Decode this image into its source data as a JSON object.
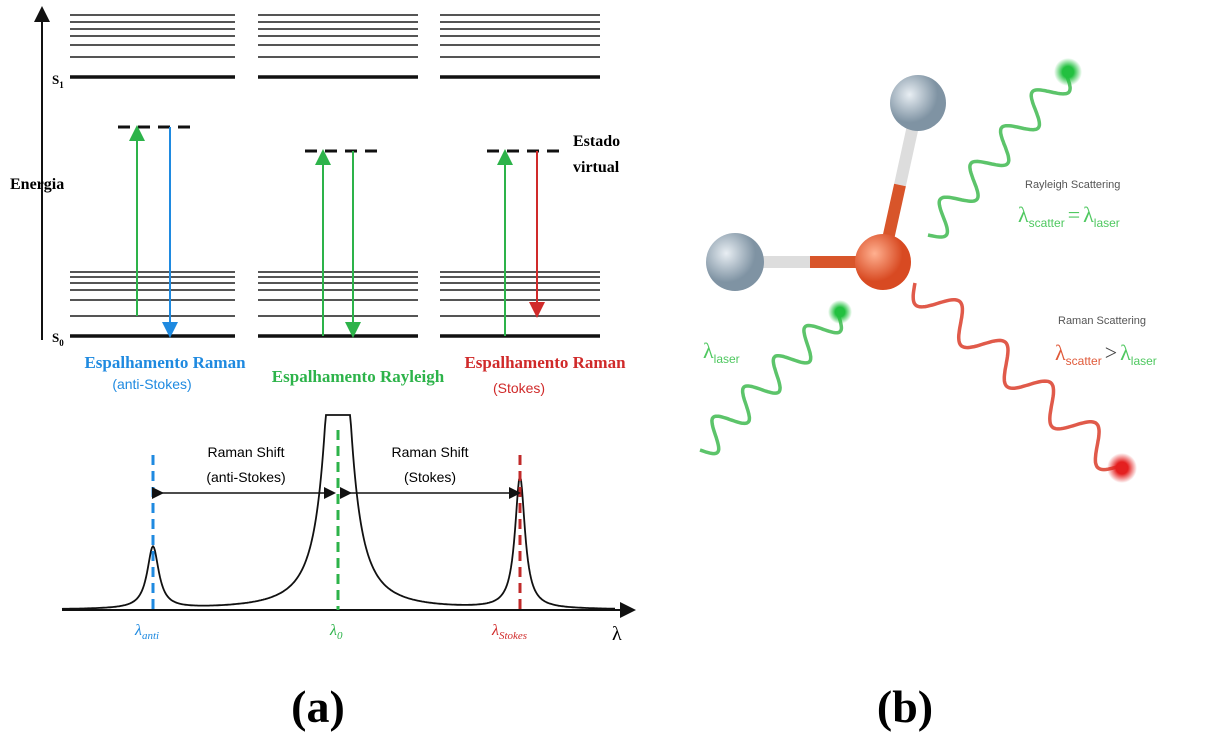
{
  "energy_diagram": {
    "axis_label": "Energia",
    "s1": {
      "base": "S",
      "sub": "1"
    },
    "s0": {
      "base": "S",
      "sub": "0"
    },
    "virtual_state": [
      "Estado",
      "virtual"
    ],
    "columns": [
      {
        "title": "Espalhamento Raman",
        "subtitle": "(anti-Stokes)"
      },
      {
        "title": "Espalhamento Rayleigh"
      },
      {
        "title": "Espalhamento Raman",
        "subtitle": "(Stokes)"
      }
    ]
  },
  "spectrum": {
    "shift_left": [
      "Raman Shift",
      "(anti-Stokes)"
    ],
    "shift_right": [
      "Raman Shift",
      "(Stokes)"
    ],
    "lambda_anti": {
      "base": "λ",
      "sub": "anti"
    },
    "lambda_0": {
      "base": "λ",
      "sub": "0"
    },
    "lambda_stokes": {
      "base": "λ",
      "sub": "Stokes"
    },
    "axis_label": "λ"
  },
  "panel_a": "(a)",
  "panel_b": "(b)",
  "scattering": {
    "rayleigh_title": "Rayleigh Scattering",
    "rayleigh_eq": {
      "l1": "λ",
      "s1": "scatter",
      "op": "=",
      "l2": "λ",
      "s2": "laser"
    },
    "raman_title": "Raman Scattering",
    "raman_eq": {
      "l1": "λ",
      "s1": "scatter",
      "op": ">",
      "l2": "λ",
      "s2": "laser"
    },
    "laser": {
      "base": "λ",
      "sub": "laser"
    }
  }
}
